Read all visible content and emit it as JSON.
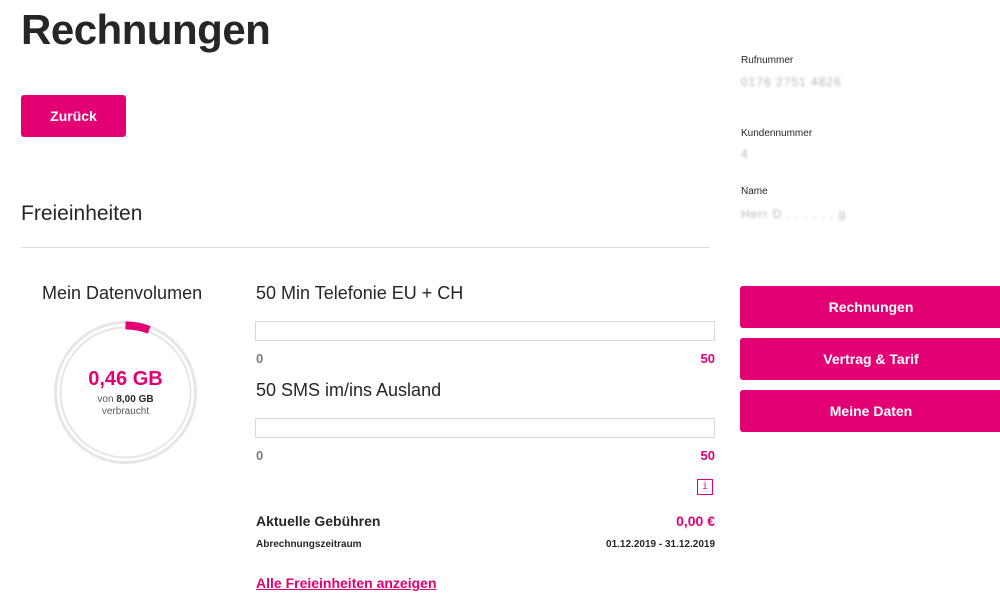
{
  "header": {
    "title": "Rechnungen",
    "back_label": "Zurück"
  },
  "section": {
    "title": "Freieinheiten"
  },
  "data_volume": {
    "title": "Mein Datenvolumen",
    "used_display": "0,46 GB",
    "of_prefix": "von",
    "total_display": "8,00 GB",
    "used_label": "verbraucht",
    "used_value": 0.46,
    "total_value": 8.0,
    "accent_color": "#e20074"
  },
  "allowances": [
    {
      "title": "50 Min Telefonie EU + CH",
      "min": "0",
      "max": "50",
      "used": 0
    },
    {
      "title": "50 SMS im/ins Ausland",
      "min": "0",
      "max": "50",
      "used": 0
    }
  ],
  "info_icon": {
    "glyph": "i",
    "icon": "info-icon"
  },
  "fees": {
    "label": "Aktuelle Gebühren",
    "value": "0,00 €",
    "period_label": "Abrechnungszeitraum",
    "period_value": "01.12.2019 - 31.12.2019"
  },
  "all_units_link": "Alle Freieinheiten anzeigen",
  "sidebar": {
    "phone_label": "Rufnummer",
    "phone_value": "0176 2751 4826",
    "customer_label": "Kundennummer",
    "customer_value": "4",
    "name_label": "Name",
    "name_value": "Herr D . . . . . . g",
    "nav": [
      {
        "label": "Rechnungen"
      },
      {
        "label": "Vertrag & Tarif"
      },
      {
        "label": "Meine Daten"
      }
    ]
  },
  "colors": {
    "brand": "#e20074",
    "text": "#262626",
    "muted": "#7c7c7c"
  }
}
